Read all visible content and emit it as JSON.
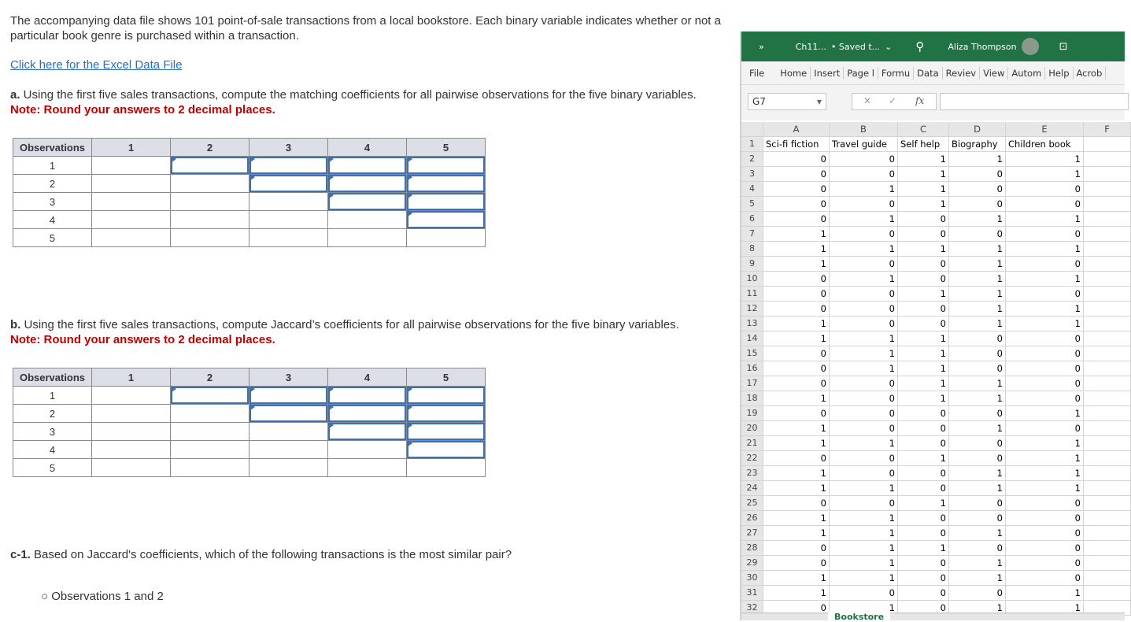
{
  "question": {
    "intro": "The accompanying data file shows 101 point-of-sale transactions from a local bookstore. Each binary variable indicates whether or not a particular book genre is purchased within a transaction.",
    "link": "Click here for the Excel Data File",
    "part_a_label": "a.",
    "part_a": " Using the first five sales transactions, compute the matching coefficients for all pairwise observations for the five binary variables.",
    "note": "Note: Round your answers to 2 decimal places.",
    "part_b_label": "b.",
    "part_b": " Using the first five sales transactions, compute Jaccard’s coefficients for all pairwise observations for the five binary variables.",
    "part_c_label": "c-1.",
    "part_c": " Based on Jaccard's coefficients, which of the following transactions is the most similar pair?",
    "option_1": "Observations 1 and 2"
  },
  "table": {
    "header": "Observations",
    "cols": [
      "1",
      "2",
      "3",
      "4",
      "5"
    ],
    "rows": [
      "1",
      "2",
      "3",
      "4",
      "5"
    ]
  },
  "excel": {
    "file": "Ch11...",
    "saved": "• Saved t...",
    "user": "Aliza Thompson",
    "ribbon": [
      "File",
      "Home",
      "Insert",
      "Page l",
      "Formu",
      "Data",
      "Reviev",
      "View",
      "Autom",
      "Help",
      "Acrob"
    ],
    "name_box": "G7",
    "fx": "fx",
    "columns": [
      "A",
      "B",
      "C",
      "D",
      "E",
      "F"
    ],
    "headers": [
      "Sci-fi fiction",
      "Travel guide",
      "Self help",
      "Biography",
      "Children book"
    ],
    "data": [
      [
        0,
        0,
        1,
        1,
        1
      ],
      [
        0,
        0,
        1,
        0,
        1
      ],
      [
        0,
        1,
        1,
        0,
        0
      ],
      [
        0,
        0,
        1,
        0,
        0
      ],
      [
        0,
        1,
        0,
        1,
        1
      ],
      [
        1,
        0,
        0,
        0,
        0
      ],
      [
        1,
        1,
        1,
        1,
        1
      ],
      [
        1,
        0,
        0,
        1,
        0
      ],
      [
        0,
        1,
        0,
        1,
        1
      ],
      [
        0,
        0,
        1,
        1,
        0
      ],
      [
        0,
        0,
        0,
        1,
        1
      ],
      [
        1,
        0,
        0,
        1,
        1
      ],
      [
        1,
        1,
        1,
        0,
        0
      ],
      [
        0,
        1,
        1,
        0,
        0
      ],
      [
        0,
        1,
        1,
        0,
        0
      ],
      [
        0,
        0,
        1,
        1,
        0
      ],
      [
        1,
        0,
        1,
        1,
        0
      ],
      [
        0,
        0,
        0,
        0,
        1
      ],
      [
        1,
        0,
        0,
        1,
        0
      ],
      [
        1,
        1,
        0,
        0,
        1
      ],
      [
        0,
        0,
        1,
        0,
        1
      ],
      [
        1,
        0,
        0,
        1,
        1
      ],
      [
        1,
        1,
        0,
        1,
        1
      ],
      [
        0,
        0,
        1,
        0,
        0
      ],
      [
        1,
        1,
        0,
        0,
        0
      ],
      [
        1,
        1,
        0,
        1,
        0
      ],
      [
        0,
        1,
        1,
        0,
        0
      ],
      [
        0,
        1,
        0,
        1,
        0
      ],
      [
        1,
        1,
        0,
        1,
        0
      ],
      [
        1,
        0,
        0,
        0,
        1
      ],
      [
        0,
        1,
        0,
        1,
        1
      ]
    ],
    "sheet_tab": "Bookstore",
    "accent": "#217346"
  }
}
